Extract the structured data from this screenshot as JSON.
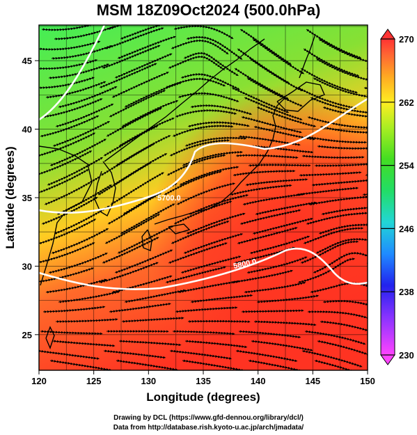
{
  "title": "MSM 18Z09Oct2024 (500.0hPa)",
  "x_axis": {
    "label": "Longitude (degrees)",
    "ticks": [
      "120",
      "125",
      "130",
      "135",
      "140",
      "145",
      "150"
    ],
    "range": [
      120,
      150
    ]
  },
  "y_axis": {
    "label": "Latitude  (degrees)",
    "ticks": [
      "25",
      "30",
      "35",
      "40",
      "45"
    ],
    "range": [
      22.4,
      47.6
    ]
  },
  "colorbar": {
    "ticks": [
      "230",
      "238",
      "246",
      "254",
      "262",
      "270"
    ],
    "range": [
      230,
      270
    ],
    "colors": [
      "#ff44ff",
      "#9933ff",
      "#2222ee",
      "#1f8bff",
      "#22d6d6",
      "#22dd66",
      "#33dd22",
      "#99ee22",
      "#ffee22",
      "#ffaa22",
      "#ff6633",
      "#ff3333"
    ]
  },
  "contour_labels": [
    "5700.0",
    "5800.0"
  ],
  "credits": {
    "line1": "Drawing by DCL (https://www.gfd-dennou.org/library/dcl/)",
    "line2": "Data from http://database.rish.kyoto-u.ac.jp/arch/jmadata/"
  },
  "colors": {
    "warm": "#ff3a2a",
    "mid": "#ffcc22",
    "cool": "#33dd33",
    "coast": "#000000",
    "contour": "#ffffff"
  }
}
